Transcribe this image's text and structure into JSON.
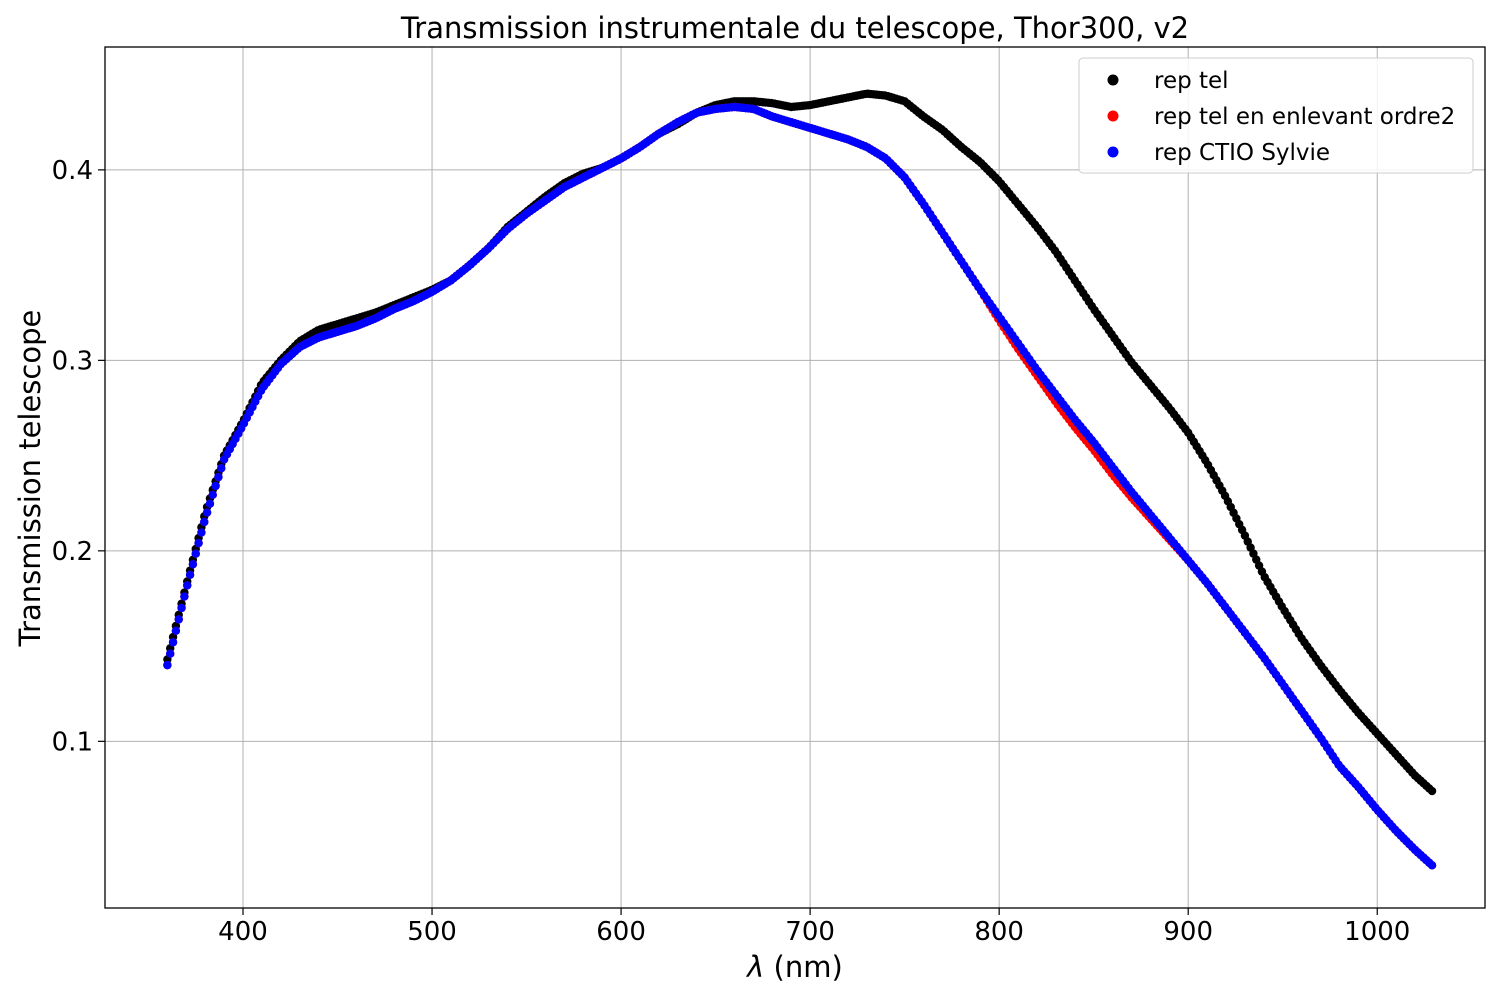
{
  "chart_data": {
    "type": "scatter",
    "title": "Transmission instrumentale du telescope, Thor300, v2",
    "xlabel_symbol": "λ",
    "xlabel_unit": " (nm)",
    "ylabel": "Transmission telescope",
    "xlim": [
      327,
      1057
    ],
    "ylim": [
      0.0125,
      0.4645
    ],
    "xticks": [
      400,
      500,
      600,
      700,
      800,
      900,
      1000
    ],
    "yticks": [
      0.1,
      0.2,
      0.3,
      0.4
    ],
    "xtick_labels": [
      "400",
      "500",
      "600",
      "700",
      "800",
      "900",
      "1000"
    ],
    "ytick_labels": [
      "0.1",
      "0.2",
      "0.3",
      "0.4"
    ],
    "grid": true,
    "legend_position": "top-right",
    "series": [
      {
        "name": "rep tel",
        "color": "#000000",
        "points": [
          [
            360,
            0.143
          ],
          [
            370,
            0.182
          ],
          [
            380,
            0.22
          ],
          [
            390,
            0.25
          ],
          [
            400,
            0.268
          ],
          [
            410,
            0.288
          ],
          [
            420,
            0.3
          ],
          [
            430,
            0.31
          ],
          [
            440,
            0.316
          ],
          [
            450,
            0.319
          ],
          [
            460,
            0.322
          ],
          [
            470,
            0.325
          ],
          [
            480,
            0.329
          ],
          [
            490,
            0.333
          ],
          [
            500,
            0.337
          ],
          [
            510,
            0.342
          ],
          [
            520,
            0.35
          ],
          [
            530,
            0.359
          ],
          [
            540,
            0.37
          ],
          [
            550,
            0.378
          ],
          [
            560,
            0.386
          ],
          [
            570,
            0.393
          ],
          [
            580,
            0.398
          ],
          [
            590,
            0.401
          ],
          [
            600,
            0.406
          ],
          [
            610,
            0.412
          ],
          [
            620,
            0.419
          ],
          [
            630,
            0.424
          ],
          [
            640,
            0.43
          ],
          [
            650,
            0.434
          ],
          [
            660,
            0.436
          ],
          [
            670,
            0.436
          ],
          [
            680,
            0.435
          ],
          [
            690,
            0.433
          ],
          [
            700,
            0.434
          ],
          [
            710,
            0.436
          ],
          [
            720,
            0.438
          ],
          [
            730,
            0.44
          ],
          [
            740,
            0.439
          ],
          [
            750,
            0.436
          ],
          [
            760,
            0.428
          ],
          [
            770,
            0.421
          ],
          [
            780,
            0.412
          ],
          [
            790,
            0.404
          ],
          [
            800,
            0.394
          ],
          [
            810,
            0.382
          ],
          [
            820,
            0.37
          ],
          [
            830,
            0.357
          ],
          [
            840,
            0.342
          ],
          [
            850,
            0.327
          ],
          [
            860,
            0.313
          ],
          [
            870,
            0.299
          ],
          [
            880,
            0.287
          ],
          [
            890,
            0.275
          ],
          [
            900,
            0.262
          ],
          [
            910,
            0.246
          ],
          [
            920,
            0.228
          ],
          [
            930,
            0.208
          ],
          [
            940,
            0.187
          ],
          [
            950,
            0.17
          ],
          [
            960,
            0.154
          ],
          [
            970,
            0.14
          ],
          [
            980,
            0.127
          ],
          [
            990,
            0.115
          ],
          [
            1000,
            0.104
          ],
          [
            1010,
            0.093
          ],
          [
            1020,
            0.082
          ],
          [
            1030,
            0.073
          ]
        ]
      },
      {
        "name": "rep tel en enlevant ordre2",
        "color": "#ff0000",
        "points": [
          [
            360,
            0.14
          ],
          [
            370,
            0.18
          ],
          [
            380,
            0.217
          ],
          [
            390,
            0.248
          ],
          [
            400,
            0.266
          ],
          [
            410,
            0.285
          ],
          [
            420,
            0.298
          ],
          [
            430,
            0.307
          ],
          [
            440,
            0.312
          ],
          [
            450,
            0.315
          ],
          [
            460,
            0.318
          ],
          [
            470,
            0.322
          ],
          [
            480,
            0.327
          ],
          [
            490,
            0.331
          ],
          [
            500,
            0.336
          ],
          [
            510,
            0.342
          ],
          [
            520,
            0.35
          ],
          [
            530,
            0.359
          ],
          [
            540,
            0.369
          ],
          [
            550,
            0.377
          ],
          [
            560,
            0.384
          ],
          [
            570,
            0.391
          ],
          [
            580,
            0.396
          ],
          [
            590,
            0.401
          ],
          [
            600,
            0.406
          ],
          [
            610,
            0.412
          ],
          [
            620,
            0.419
          ],
          [
            630,
            0.425
          ],
          [
            640,
            0.43
          ],
          [
            650,
            0.432
          ],
          [
            660,
            0.433
          ],
          [
            670,
            0.432
          ],
          [
            680,
            0.428
          ],
          [
            690,
            0.425
          ],
          [
            700,
            0.422
          ],
          [
            710,
            0.419
          ],
          [
            720,
            0.416
          ],
          [
            730,
            0.412
          ],
          [
            740,
            0.406
          ],
          [
            750,
            0.396
          ],
          [
            760,
            0.382
          ],
          [
            770,
            0.367
          ],
          [
            780,
            0.352
          ],
          [
            790,
            0.337
          ],
          [
            800,
            0.321
          ],
          [
            810,
            0.306
          ],
          [
            820,
            0.292
          ],
          [
            830,
            0.278
          ],
          [
            840,
            0.265
          ],
          [
            850,
            0.253
          ],
          [
            860,
            0.24
          ],
          [
            870,
            0.228
          ],
          [
            880,
            0.217
          ],
          [
            890,
            0.206
          ],
          [
            900,
            0.195
          ],
          [
            910,
            0.183
          ],
          [
            920,
            0.17
          ],
          [
            930,
            0.157
          ],
          [
            940,
            0.144
          ],
          [
            950,
            0.13
          ],
          [
            960,
            0.116
          ],
          [
            970,
            0.102
          ],
          [
            980,
            0.087
          ],
          [
            990,
            0.076
          ],
          [
            1000,
            0.064
          ],
          [
            1010,
            0.053
          ],
          [
            1020,
            0.043
          ],
          [
            1030,
            0.034
          ]
        ]
      },
      {
        "name": "rep CTIO Sylvie",
        "color": "#0000ff",
        "points": [
          [
            360,
            0.14
          ],
          [
            370,
            0.18
          ],
          [
            380,
            0.217
          ],
          [
            390,
            0.248
          ],
          [
            400,
            0.266
          ],
          [
            410,
            0.285
          ],
          [
            420,
            0.298
          ],
          [
            430,
            0.307
          ],
          [
            440,
            0.312
          ],
          [
            450,
            0.315
          ],
          [
            460,
            0.318
          ],
          [
            470,
            0.322
          ],
          [
            480,
            0.327
          ],
          [
            490,
            0.331
          ],
          [
            500,
            0.336
          ],
          [
            510,
            0.342
          ],
          [
            520,
            0.35
          ],
          [
            530,
            0.359
          ],
          [
            540,
            0.369
          ],
          [
            550,
            0.377
          ],
          [
            560,
            0.384
          ],
          [
            570,
            0.391
          ],
          [
            580,
            0.396
          ],
          [
            590,
            0.401
          ],
          [
            600,
            0.406
          ],
          [
            610,
            0.412
          ],
          [
            620,
            0.419
          ],
          [
            630,
            0.425
          ],
          [
            640,
            0.43
          ],
          [
            650,
            0.432
          ],
          [
            660,
            0.433
          ],
          [
            670,
            0.432
          ],
          [
            680,
            0.428
          ],
          [
            690,
            0.425
          ],
          [
            700,
            0.422
          ],
          [
            710,
            0.419
          ],
          [
            720,
            0.416
          ],
          [
            730,
            0.412
          ],
          [
            740,
            0.406
          ],
          [
            750,
            0.396
          ],
          [
            760,
            0.382
          ],
          [
            770,
            0.367
          ],
          [
            780,
            0.352
          ],
          [
            790,
            0.337
          ],
          [
            800,
            0.323
          ],
          [
            810,
            0.309
          ],
          [
            820,
            0.295
          ],
          [
            830,
            0.282
          ],
          [
            840,
            0.269
          ],
          [
            850,
            0.257
          ],
          [
            860,
            0.244
          ],
          [
            870,
            0.231
          ],
          [
            880,
            0.219
          ],
          [
            890,
            0.207
          ],
          [
            900,
            0.195
          ],
          [
            910,
            0.183
          ],
          [
            920,
            0.17
          ],
          [
            930,
            0.157
          ],
          [
            940,
            0.144
          ],
          [
            950,
            0.13
          ],
          [
            960,
            0.116
          ],
          [
            970,
            0.102
          ],
          [
            980,
            0.087
          ],
          [
            990,
            0.076
          ],
          [
            1000,
            0.064
          ],
          [
            1010,
            0.053
          ],
          [
            1020,
            0.043
          ],
          [
            1030,
            0.034
          ]
        ]
      }
    ]
  }
}
